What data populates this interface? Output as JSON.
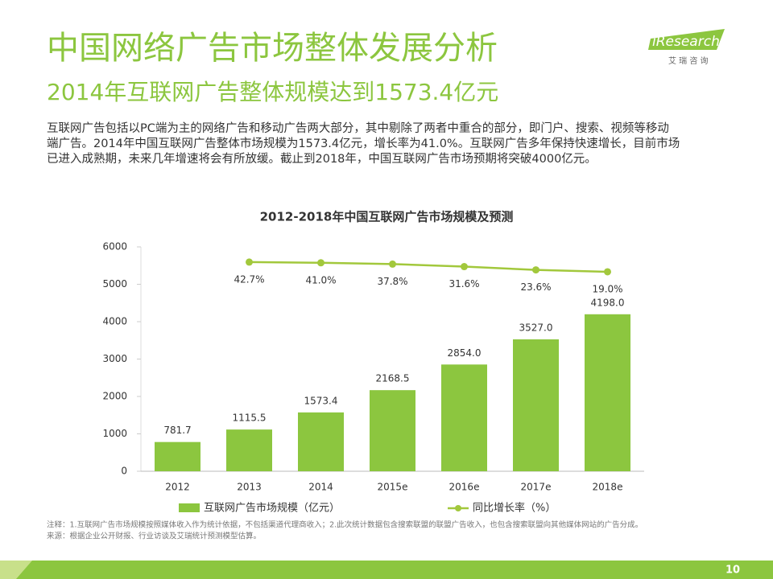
{
  "header": {
    "title": "中国网络广告市场整体发展分析",
    "subtitle": "2014年互联网广告整体规模达到1573.4亿元"
  },
  "logo": {
    "name": "iResearch",
    "sub": "艾 瑞 咨 询"
  },
  "paragraph": [
    "互联网广告包括以PC端为主的网络广告和移动广告两大部分，其中剔除了两者中重合的部分，即门户、搜索、视频等移动",
    "端广告。2014年中国互联网广告整体市场规模为1573.4亿元，增长率为41.0%。互联网广告多年保持快速增长，目前市场",
    "已进入成熟期，未来几年增速将会有所放缓。截止到2018年，中国互联网广告市场预期将突破4000亿元。"
  ],
  "chart_data": {
    "type": "bar",
    "title": "2012-2018年中国互联网广告市场规模及预测",
    "categories": [
      "2012",
      "2013",
      "2014",
      "2015e",
      "2016e",
      "2017e",
      "2018e"
    ],
    "series": [
      {
        "name": "互联网广告市场规模（亿元）",
        "type": "bar",
        "color": "#8cc63f",
        "values": [
          781.7,
          1115.5,
          1573.4,
          2168.5,
          2854,
          3527,
          4198
        ],
        "value_labels": [
          "781.7",
          "1115.5",
          "1573.4",
          "2168.5",
          "2854.0",
          "3527.0",
          "4198.0"
        ]
      },
      {
        "name": "同比增长率（%）",
        "type": "line",
        "axis": "y2",
        "color": "#a2c83c",
        "values": [
          null,
          42.7,
          41.0,
          37.8,
          31.6,
          23.6,
          19.0
        ],
        "value_labels": [
          null,
          "42.7%",
          "41.0%",
          "37.8%",
          "31.6%",
          "23.6%",
          "19.0%"
        ]
      }
    ],
    "ylim": [
      0,
      6000
    ],
    "yticks": [
      0,
      1000,
      2000,
      3000,
      4000,
      5000,
      6000
    ],
    "y2lim": [
      -470,
      80
    ],
    "grid": false,
    "legend": "bottom"
  },
  "notes": [
    "注释：1.互联网广告市场规模按照媒体收入作为统计依据，不包括渠道代理商收入；2.此次统计数据包含搜索联盟的联盟广告收入，也包含搜索联盟向其他媒体网站的广告分成。",
    "来源：根据企业公开财报、行业访谈及艾瑞统计预测模型估算。"
  ],
  "page_number": "10"
}
